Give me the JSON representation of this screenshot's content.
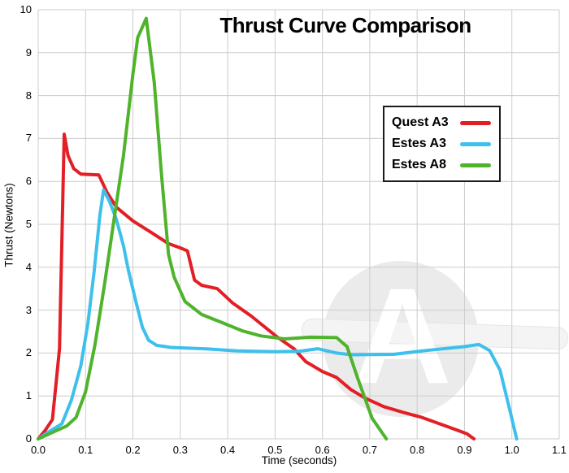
{
  "chart_data": {
    "type": "line",
    "title": "Thrust Curve Comparison",
    "xlabel": "Time (seconds)",
    "ylabel": "Thrust (Newtons)",
    "xlim": [
      0,
      1.1
    ],
    "ylim": [
      0,
      10
    ],
    "x_ticks": [
      0,
      0.1,
      0.2,
      0.3,
      0.4,
      0.5,
      0.6,
      0.7,
      0.8,
      0.9,
      1.0,
      1.1
    ],
    "y_ticks": [
      0,
      1,
      2,
      3,
      4,
      5,
      6,
      7,
      8,
      9,
      10
    ],
    "grid": true,
    "grid_color": "#cccccc",
    "legend_position": "upper right",
    "series": [
      {
        "name": "Quest A3",
        "color": "#e31f26",
        "points": [
          [
            0,
            0
          ],
          [
            0.015,
            0.2
          ],
          [
            0.03,
            0.45
          ],
          [
            0.045,
            2.1
          ],
          [
            0.055,
            7.1
          ],
          [
            0.063,
            6.6
          ],
          [
            0.075,
            6.3
          ],
          [
            0.09,
            6.17
          ],
          [
            0.128,
            6.15
          ],
          [
            0.145,
            5.75
          ],
          [
            0.165,
            5.4
          ],
          [
            0.2,
            5.08
          ],
          [
            0.24,
            4.8
          ],
          [
            0.275,
            4.55
          ],
          [
            0.3,
            4.45
          ],
          [
            0.315,
            4.38
          ],
          [
            0.33,
            3.7
          ],
          [
            0.345,
            3.58
          ],
          [
            0.378,
            3.5
          ],
          [
            0.41,
            3.17
          ],
          [
            0.45,
            2.86
          ],
          [
            0.505,
            2.37
          ],
          [
            0.54,
            2.1
          ],
          [
            0.565,
            1.8
          ],
          [
            0.6,
            1.57
          ],
          [
            0.63,
            1.43
          ],
          [
            0.66,
            1.15
          ],
          [
            0.69,
            0.95
          ],
          [
            0.73,
            0.75
          ],
          [
            0.77,
            0.62
          ],
          [
            0.81,
            0.5
          ],
          [
            0.85,
            0.34
          ],
          [
            0.885,
            0.2
          ],
          [
            0.905,
            0.12
          ],
          [
            0.92,
            0
          ]
        ]
      },
      {
        "name": "Estes A3",
        "color": "#3fc0ec",
        "points": [
          [
            0,
            0
          ],
          [
            0.02,
            0.15
          ],
          [
            0.05,
            0.35
          ],
          [
            0.07,
            0.9
          ],
          [
            0.09,
            1.7
          ],
          [
            0.105,
            2.7
          ],
          [
            0.118,
            3.9
          ],
          [
            0.13,
            5.2
          ],
          [
            0.138,
            5.8
          ],
          [
            0.15,
            5.55
          ],
          [
            0.165,
            5.12
          ],
          [
            0.18,
            4.5
          ],
          [
            0.19,
            3.95
          ],
          [
            0.205,
            3.25
          ],
          [
            0.22,
            2.6
          ],
          [
            0.233,
            2.3
          ],
          [
            0.25,
            2.18
          ],
          [
            0.28,
            2.13
          ],
          [
            0.35,
            2.1
          ],
          [
            0.42,
            2.05
          ],
          [
            0.5,
            2.03
          ],
          [
            0.55,
            2.04
          ],
          [
            0.59,
            2.1
          ],
          [
            0.63,
            2.0
          ],
          [
            0.66,
            1.96
          ],
          [
            0.75,
            1.97
          ],
          [
            0.82,
            2.06
          ],
          [
            0.9,
            2.15
          ],
          [
            0.93,
            2.2
          ],
          [
            0.953,
            2.06
          ],
          [
            0.975,
            1.6
          ],
          [
            0.995,
            0.7
          ],
          [
            1.01,
            0
          ]
        ]
      },
      {
        "name": "Estes A8",
        "color": "#4fb32c",
        "points": [
          [
            0,
            0
          ],
          [
            0.03,
            0.15
          ],
          [
            0.06,
            0.3
          ],
          [
            0.08,
            0.5
          ],
          [
            0.1,
            1.1
          ],
          [
            0.12,
            2.2
          ],
          [
            0.14,
            3.6
          ],
          [
            0.16,
            5.1
          ],
          [
            0.18,
            6.6
          ],
          [
            0.2,
            8.5
          ],
          [
            0.21,
            9.35
          ],
          [
            0.228,
            9.8
          ],
          [
            0.245,
            8.3
          ],
          [
            0.26,
            6.2
          ],
          [
            0.275,
            4.3
          ],
          [
            0.287,
            3.77
          ],
          [
            0.31,
            3.2
          ],
          [
            0.345,
            2.9
          ],
          [
            0.39,
            2.7
          ],
          [
            0.43,
            2.52
          ],
          [
            0.47,
            2.4
          ],
          [
            0.52,
            2.33
          ],
          [
            0.575,
            2.37
          ],
          [
            0.63,
            2.36
          ],
          [
            0.652,
            2.15
          ],
          [
            0.675,
            1.4
          ],
          [
            0.705,
            0.48
          ],
          [
            0.735,
            0
          ]
        ]
      }
    ]
  },
  "watermark": {
    "letter": "A"
  }
}
